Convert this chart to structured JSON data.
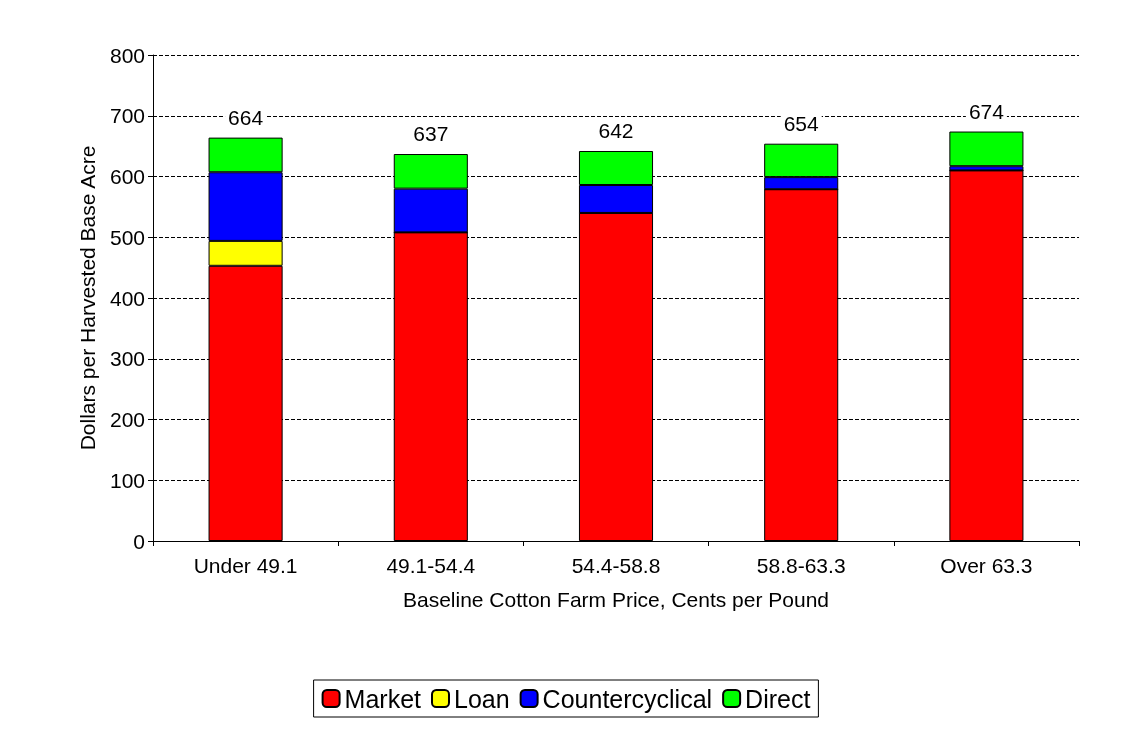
{
  "chart_data": {
    "type": "bar",
    "stacked": true,
    "xlabel": "Baseline Cotton Farm Price, Cents per Pound",
    "ylabel": "Dollars per Harvested Base Acre",
    "categories": [
      "Under 49.1",
      "49.1-54.4",
      "54.4-58.8",
      "58.8-63.3",
      "Over 63.3"
    ],
    "series": [
      {
        "name": "Market",
        "color": "#ff0000",
        "values": [
          453,
          508,
          540,
          579,
          610
        ]
      },
      {
        "name": "Loan",
        "color": "#ffff00",
        "values": [
          41,
          0,
          0,
          0,
          0
        ]
      },
      {
        "name": "Countercyclical",
        "color": "#0000ff",
        "values": [
          113,
          72,
          46,
          20,
          7
        ]
      },
      {
        "name": "Direct",
        "color": "#00ff00",
        "values": [
          57,
          57,
          56,
          55,
          57
        ]
      }
    ],
    "totals": [
      "664",
      "637",
      "642",
      "654",
      "674"
    ],
    "ylim": [
      0,
      800
    ],
    "yticks": [
      0,
      100,
      200,
      300,
      400,
      500,
      600,
      700,
      800
    ],
    "grid": "y",
    "legend": "bottom"
  }
}
